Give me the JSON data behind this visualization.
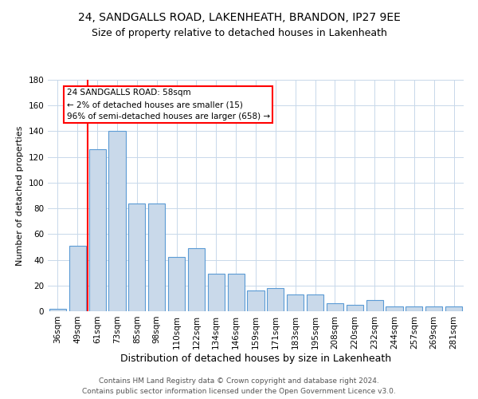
{
  "title_line1": "24, SANDGALLS ROAD, LAKENHEATH, BRANDON, IP27 9EE",
  "title_line2": "Size of property relative to detached houses in Lakenheath",
  "xlabel": "Distribution of detached houses by size in Lakenheath",
  "ylabel": "Number of detached properties",
  "categories": [
    "36sqm",
    "49sqm",
    "61sqm",
    "73sqm",
    "85sqm",
    "98sqm",
    "110sqm",
    "122sqm",
    "134sqm",
    "146sqm",
    "159sqm",
    "171sqm",
    "183sqm",
    "195sqm",
    "208sqm",
    "220sqm",
    "232sqm",
    "244sqm",
    "257sqm",
    "269sqm",
    "281sqm"
  ],
  "values": [
    2,
    51,
    126,
    140,
    84,
    84,
    42,
    49,
    29,
    29,
    16,
    18,
    13,
    13,
    6,
    5,
    9,
    4,
    4,
    4,
    4
  ],
  "bar_color": "#c9d9ea",
  "bar_edge_color": "#5b9bd5",
  "ylim": [
    0,
    180
  ],
  "yticks": [
    0,
    20,
    40,
    60,
    80,
    100,
    120,
    140,
    160,
    180
  ],
  "red_line_x": 1.5,
  "annotation_title": "24 SANDGALLS ROAD: 58sqm",
  "annotation_line1": "← 2% of detached houses are smaller (15)",
  "annotation_line2": "96% of semi-detached houses are larger (658) →",
  "footer_line1": "Contains HM Land Registry data © Crown copyright and database right 2024.",
  "footer_line2": "Contains public sector information licensed under the Open Government Licence v3.0.",
  "background_color": "#ffffff",
  "grid_color": "#c8d8ea",
  "title_fontsize": 10,
  "subtitle_fontsize": 9,
  "ylabel_fontsize": 8,
  "tick_fontsize": 7.5,
  "footer_fontsize": 6.5,
  "xlabel_fontsize": 9
}
